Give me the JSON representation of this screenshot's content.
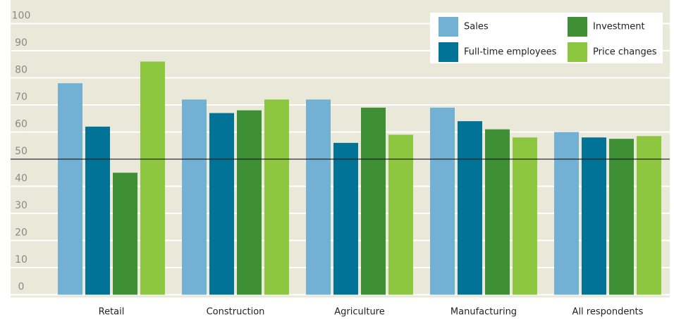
{
  "chart_data": {
    "type": "bar",
    "categories": [
      "Retail",
      "Construction",
      "Agriculture",
      "Manufacturing",
      "All respondents"
    ],
    "series": [
      {
        "name": "Sales",
        "color": "#72b1d4",
        "values": [
          78,
          72,
          72,
          69,
          60
        ]
      },
      {
        "name": "Full-time employees",
        "color": "#007396",
        "values": [
          62,
          67,
          56,
          64,
          58
        ]
      },
      {
        "name": "Investment",
        "color": "#3f8f35",
        "values": [
          45,
          68,
          69,
          61,
          57.5
        ]
      },
      {
        "name": "Price changes",
        "color": "#8dc63f",
        "values": [
          86,
          72,
          59,
          58,
          58.5
        ]
      }
    ],
    "ylim": [
      0,
      100
    ],
    "yticks": [
      0,
      10,
      20,
      30,
      40,
      50,
      60,
      70,
      80,
      90,
      100
    ],
    "grid": true,
    "reference_line": 50,
    "legend": "upper right"
  }
}
